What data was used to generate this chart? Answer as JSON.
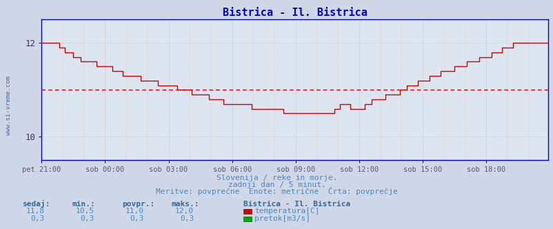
{
  "title": "Bistrica - Il. Bistrica",
  "title_color": "#0000cc",
  "bg_color": "#d0d8e8",
  "plot_bg_color": "#dde6f0",
  "grid_color_h": "#aabbcc",
  "grid_color_v": "#dd9999",
  "x_tick_labels": [
    "pet 21:00",
    "sob 00:00",
    "sob 03:00",
    "sob 06:00",
    "sob 09:00",
    "sob 12:00",
    "sob 15:00",
    "sob 18:00"
  ],
  "x_tick_positions": [
    0,
    36,
    72,
    108,
    144,
    180,
    216,
    252
  ],
  "n_points": 288,
  "temp_avg": 11.0,
  "temp_color": "#cc0000",
  "flow_color": "#00aa00",
  "avg_line_color": "#cc0000",
  "watermark": "www.si-vreme.com",
  "watermark_color": "#4466aa",
  "footer_line1": "Slovenija / reke in morje.",
  "footer_line2": "zadnji dan / 5 minut.",
  "footer_line3": "Meritve: povprečne  Enote: metrične  Črta: povprečje",
  "footer_color": "#4488cc",
  "table_header_color": "#336699",
  "table_value_color": "#4488cc",
  "table_headers": [
    "sedaj:",
    "min.:",
    "povpr.:",
    "maks.:"
  ],
  "table_row1_values": [
    "11,8",
    "10,5",
    "11,0",
    "12,0"
  ],
  "table_row2_values": [
    "0,3",
    "0,3",
    "0,3",
    "0,3"
  ],
  "legend_title": "Bistrica - Il. Bistrica",
  "legend_row1": "temperatura[C]",
  "legend_row2": "pretok[m3/s]",
  "ylim": [
    9.5,
    12.5
  ],
  "yticks": [
    10,
    12
  ],
  "border_color": "#0000cc",
  "spine_color": "#0000cc"
}
